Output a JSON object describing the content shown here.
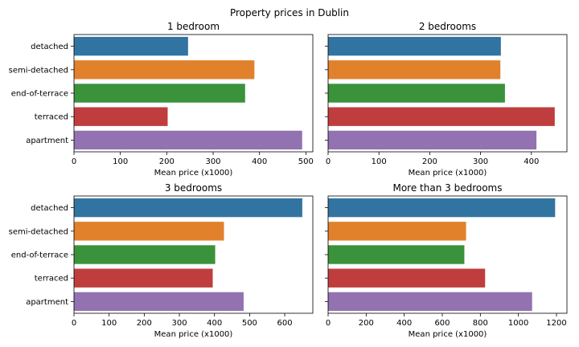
{
  "title": "Property prices in Dublin",
  "chart_data": [
    {
      "type": "bar",
      "orientation": "horizontal",
      "title": "1 bedroom",
      "xlabel": "Mean price (x1000)",
      "ylabel": "",
      "categories": [
        "detached",
        "semi-detached",
        "end-of-terrace",
        "terraced",
        "apartment"
      ],
      "values": [
        246,
        389,
        369,
        202,
        492
      ],
      "xlim": [
        0,
        515
      ],
      "xticks": [
        0,
        100,
        200,
        300,
        400,
        500
      ],
      "show_category_labels": true
    },
    {
      "type": "bar",
      "orientation": "horizontal",
      "title": "2 bedrooms",
      "xlabel": "Mean price (x1000)",
      "ylabel": "",
      "categories": [
        "detached",
        "semi-detached",
        "end-of-terrace",
        "terraced",
        "apartment"
      ],
      "values": [
        340,
        339,
        348,
        446,
        410
      ],
      "xlim": [
        0,
        470
      ],
      "xticks": [
        0,
        100,
        200,
        300,
        400
      ],
      "show_category_labels": false
    },
    {
      "type": "bar",
      "orientation": "horizontal",
      "title": "3 bedrooms",
      "xlabel": "Mean price (x1000)",
      "ylabel": "",
      "categories": [
        "detached",
        "semi-detached",
        "end-of-terrace",
        "terraced",
        "apartment"
      ],
      "values": [
        650,
        427,
        402,
        395,
        483
      ],
      "xlim": [
        0,
        680
      ],
      "xticks": [
        0,
        100,
        200,
        300,
        400,
        500,
        600
      ],
      "show_category_labels": true
    },
    {
      "type": "bar",
      "orientation": "horizontal",
      "title": "More than 3 bedrooms",
      "xlabel": "Mean price (x1000)",
      "ylabel": "",
      "categories": [
        "detached",
        "semi-detached",
        "end-of-terrace",
        "terraced",
        "apartment"
      ],
      "values": [
        1193,
        725,
        716,
        825,
        1072
      ],
      "xlim": [
        0,
        1255
      ],
      "xticks": [
        0,
        200,
        400,
        600,
        800,
        1000,
        1200
      ],
      "show_category_labels": false
    }
  ],
  "colors": [
    "#3274a1",
    "#e1812c",
    "#3a923a",
    "#c03d3e",
    "#9372b2"
  ]
}
